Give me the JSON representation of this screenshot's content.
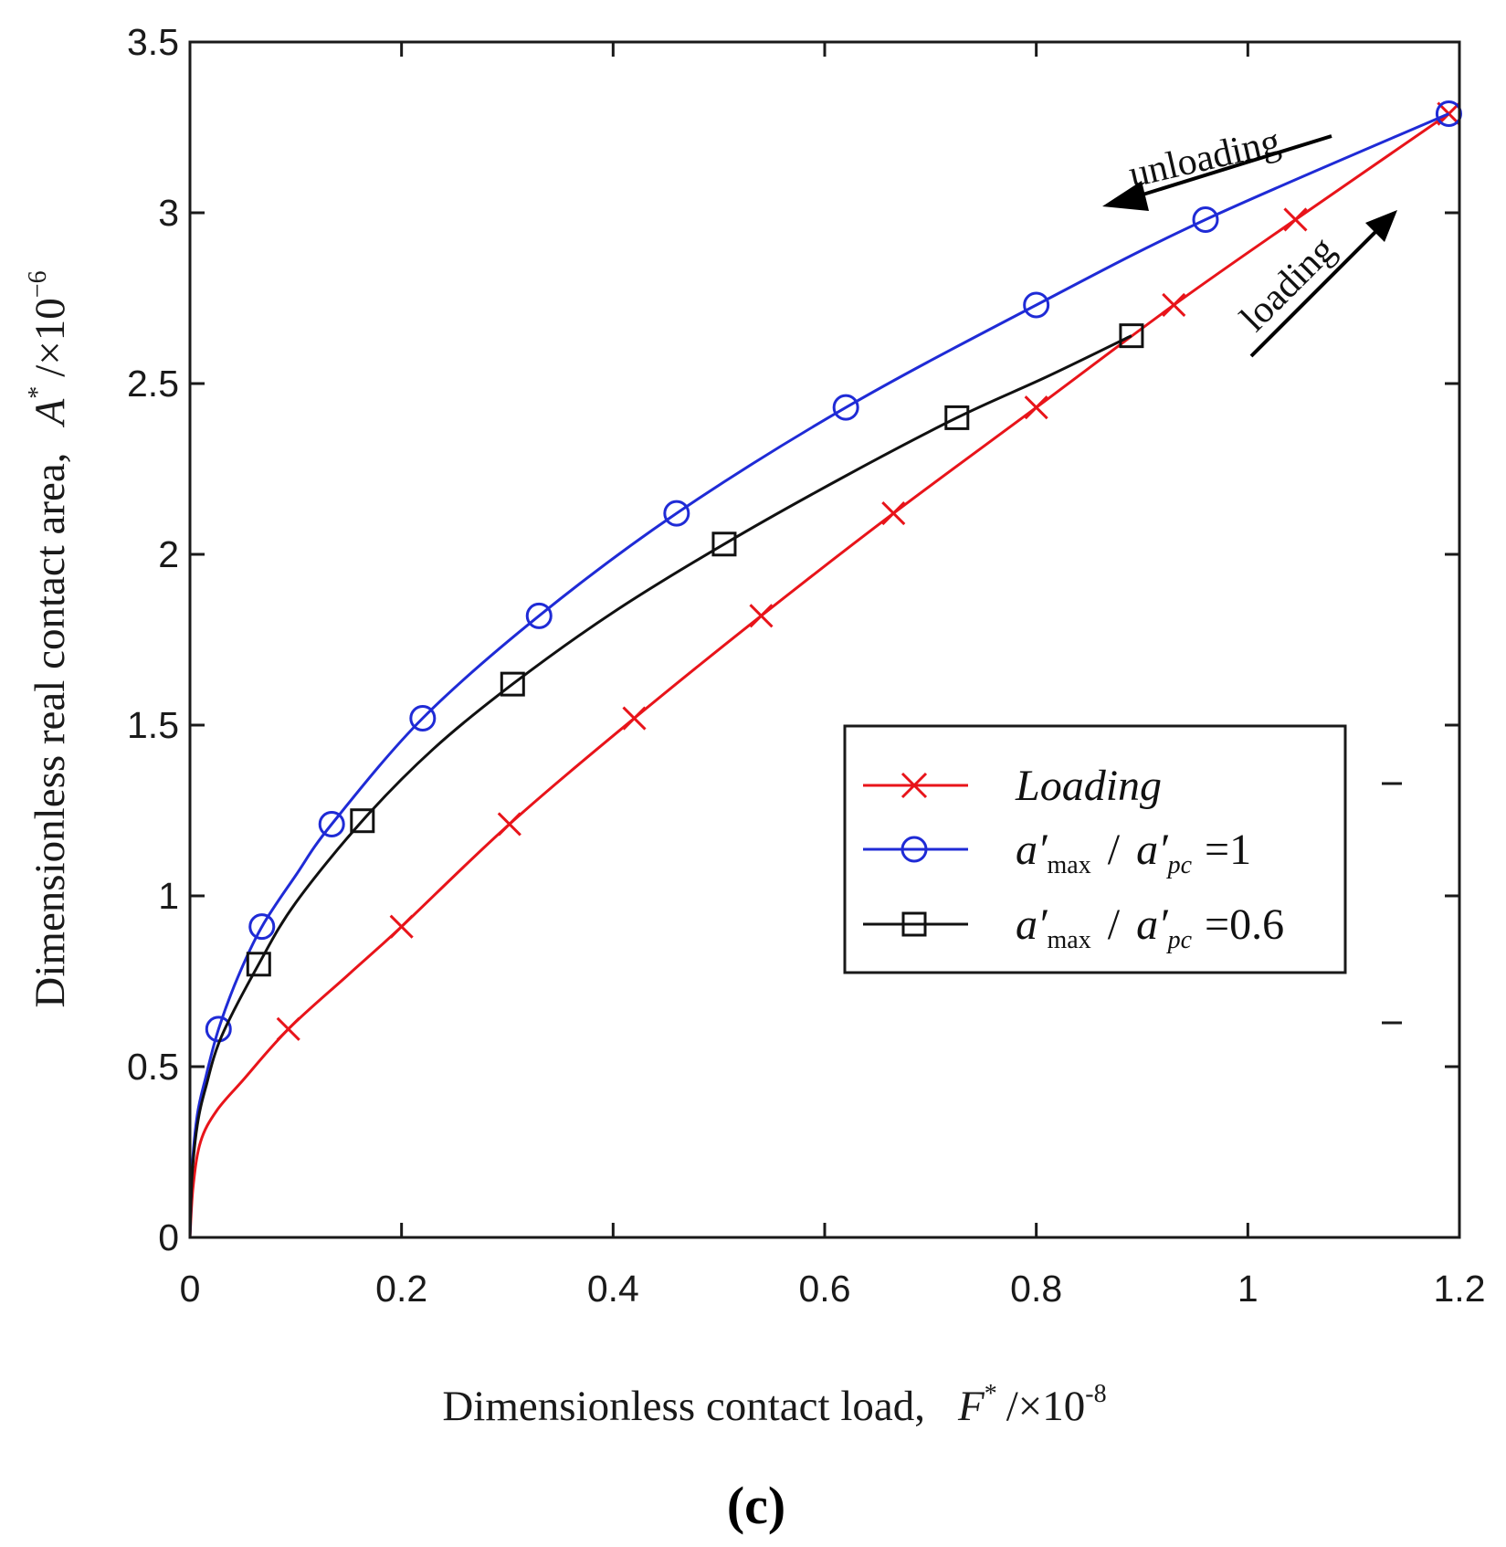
{
  "chart_data": {
    "type": "line",
    "panel_label": "(c)",
    "xlabel_text": "Dimensionless contact load,",
    "xlabel_sym": "F",
    "xlabel_unit": "/×10",
    "xlabel_exp": "-8",
    "ylabel_text": "Dimensionless real contact area,",
    "ylabel_sym": "A",
    "ylabel_unit": "/×10",
    "ylabel_exp": "−6",
    "star": "*",
    "xlim": [
      0,
      1.2
    ],
    "ylim": [
      0,
      3.5
    ],
    "xticks": [
      "0",
      "0.2",
      "0.4",
      "0.6",
      "0.8",
      "1",
      "1.2"
    ],
    "yticks": [
      "0",
      "0.5",
      "1",
      "1.5",
      "2",
      "2.5",
      "3",
      "3.5"
    ],
    "annotations": {
      "unloading": "unloading",
      "loading": "loading"
    },
    "legend": {
      "loading": "Loading",
      "amax": "a′",
      "amax_sub": "max",
      "slash": "/",
      "apc": "a′",
      "apc_sub": "pc",
      "eq1": "=1",
      "eq2": "=0.6"
    },
    "series": [
      {
        "name": "Loading",
        "color": "#e8141a",
        "marker": "x",
        "curve": [
          [
            0,
            0
          ],
          [
            0.003,
            0.15
          ],
          [
            0.01,
            0.28
          ],
          [
            0.025,
            0.37
          ],
          [
            0.05,
            0.46
          ],
          [
            0.093,
            0.61
          ],
          [
            0.15,
            0.77
          ],
          [
            0.2,
            0.91
          ],
          [
            0.302,
            1.21
          ],
          [
            0.42,
            1.52
          ],
          [
            0.54,
            1.82
          ],
          [
            0.665,
            2.12
          ],
          [
            0.8,
            2.43
          ],
          [
            0.93,
            2.73
          ],
          [
            1.045,
            2.98
          ],
          [
            1.19,
            3.29
          ]
        ],
        "markers": [
          [
            0.093,
            0.61
          ],
          [
            0.2,
            0.91
          ],
          [
            0.302,
            1.21
          ],
          [
            0.42,
            1.52
          ],
          [
            0.54,
            1.82
          ],
          [
            0.665,
            2.12
          ],
          [
            0.8,
            2.43
          ],
          [
            0.93,
            2.73
          ],
          [
            1.045,
            2.98
          ],
          [
            1.19,
            3.29
          ]
        ]
      },
      {
        "name": "a'max / a'pc = 1",
        "color": "#1f2bd6",
        "marker": "o",
        "curve": [
          [
            0,
            0
          ],
          [
            0.002,
            0.2
          ],
          [
            0.007,
            0.36
          ],
          [
            0.015,
            0.47
          ],
          [
            0.027,
            0.61
          ],
          [
            0.045,
            0.76
          ],
          [
            0.068,
            0.91
          ],
          [
            0.1,
            1.06
          ],
          [
            0.134,
            1.21
          ],
          [
            0.22,
            1.52
          ],
          [
            0.33,
            1.82
          ],
          [
            0.46,
            2.12
          ],
          [
            0.62,
            2.43
          ],
          [
            0.8,
            2.73
          ],
          [
            0.96,
            2.98
          ],
          [
            1.19,
            3.29
          ]
        ],
        "markers": [
          [
            0.027,
            0.61
          ],
          [
            0.068,
            0.91
          ],
          [
            0.134,
            1.21
          ],
          [
            0.22,
            1.52
          ],
          [
            0.33,
            1.82
          ],
          [
            0.46,
            2.12
          ],
          [
            0.62,
            2.43
          ],
          [
            0.8,
            2.73
          ],
          [
            0.96,
            2.98
          ],
          [
            1.19,
            3.29
          ]
        ]
      },
      {
        "name": "a'max / a'pc = 0.6",
        "color": "#111111",
        "marker": "s",
        "curve": [
          [
            0,
            0
          ],
          [
            0.002,
            0.18
          ],
          [
            0.007,
            0.33
          ],
          [
            0.015,
            0.44
          ],
          [
            0.03,
            0.59
          ],
          [
            0.065,
            0.8
          ],
          [
            0.1,
            0.98
          ],
          [
            0.163,
            1.22
          ],
          [
            0.23,
            1.43
          ],
          [
            0.305,
            1.62
          ],
          [
            0.4,
            1.83
          ],
          [
            0.505,
            2.03
          ],
          [
            0.62,
            2.23
          ],
          [
            0.725,
            2.4
          ],
          [
            0.81,
            2.52
          ],
          [
            0.89,
            2.64
          ]
        ],
        "markers": [
          [
            0.065,
            0.8
          ],
          [
            0.163,
            1.22
          ],
          [
            0.305,
            1.62
          ],
          [
            0.505,
            2.03
          ],
          [
            0.725,
            2.4
          ],
          [
            0.89,
            2.64
          ]
        ]
      }
    ]
  }
}
